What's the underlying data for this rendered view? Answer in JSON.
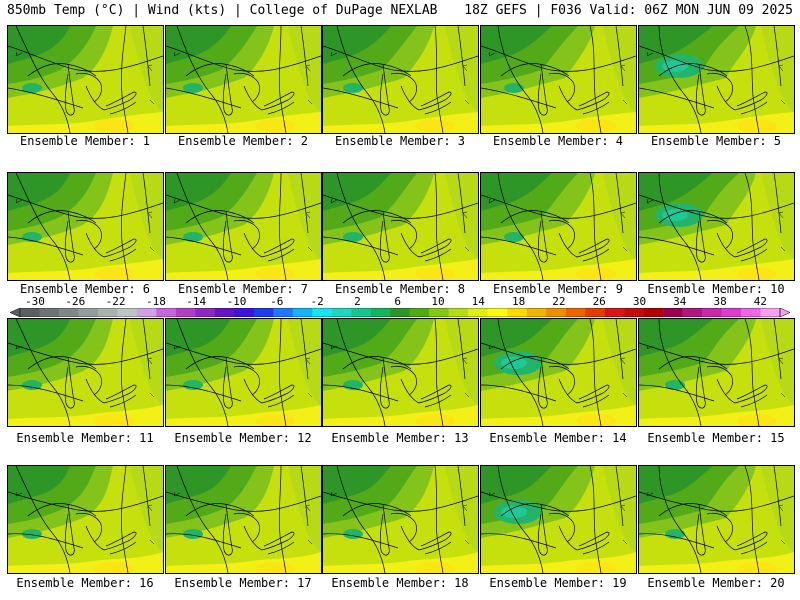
{
  "header": {
    "title_left": "850mb Temp (°C) | Wind (kts) | College of DuPage NEXLAB",
    "title_right": "18Z GEFS | F036 Valid: 06Z MON JUN 09 2025"
  },
  "panels": [
    {
      "caption": "Ensemble Member: 1"
    },
    {
      "caption": "Ensemble Member: 2"
    },
    {
      "caption": "Ensemble Member: 3"
    },
    {
      "caption": "Ensemble Member: 4"
    },
    {
      "caption": "Ensemble Member: 5"
    },
    {
      "caption": "Ensemble Member: 6"
    },
    {
      "caption": "Ensemble Member: 7"
    },
    {
      "caption": "Ensemble Member: 8"
    },
    {
      "caption": "Ensemble Member: 9"
    },
    {
      "caption": "Ensemble Member: 10"
    },
    {
      "caption": "Ensemble Member: 11"
    },
    {
      "caption": "Ensemble Member: 12"
    },
    {
      "caption": "Ensemble Member: 13"
    },
    {
      "caption": "Ensemble Member: 14"
    },
    {
      "caption": "Ensemble Member: 15"
    },
    {
      "caption": "Ensemble Member: 16"
    },
    {
      "caption": "Ensemble Member: 17"
    },
    {
      "caption": "Ensemble Member: 18"
    },
    {
      "caption": "Ensemble Member: 19"
    },
    {
      "caption": "Ensemble Member: 20"
    }
  ],
  "colorbar": {
    "labels": [
      "-30",
      "-26",
      "-22",
      "-18",
      "-14",
      "-10",
      "-6",
      "-2",
      "2",
      "6",
      "10",
      "14",
      "18",
      "22",
      "26",
      "30",
      "34",
      "38",
      "42"
    ],
    "colors": [
      "#5a6060",
      "#6e7474",
      "#828888",
      "#969c9c",
      "#aab0b0",
      "#bec4c4",
      "#d2a0e6",
      "#c864dc",
      "#b43cc8",
      "#8c28c8",
      "#6414c8",
      "#3c14dc",
      "#1e3cf0",
      "#1e78ff",
      "#14b4ff",
      "#14e6f0",
      "#1ed7be",
      "#14c88c",
      "#14b45a",
      "#289628",
      "#50aa14",
      "#82c814",
      "#b4dc14",
      "#dcf014",
      "#fafa14",
      "#fadc00",
      "#f0b400",
      "#f08c00",
      "#f06400",
      "#e63c00",
      "#dc1414",
      "#c80a0a",
      "#b40000",
      "#a00050",
      "#b4147d",
      "#c828aa",
      "#dc3cd2",
      "#f064e6",
      "#f8a0f0"
    ]
  }
}
